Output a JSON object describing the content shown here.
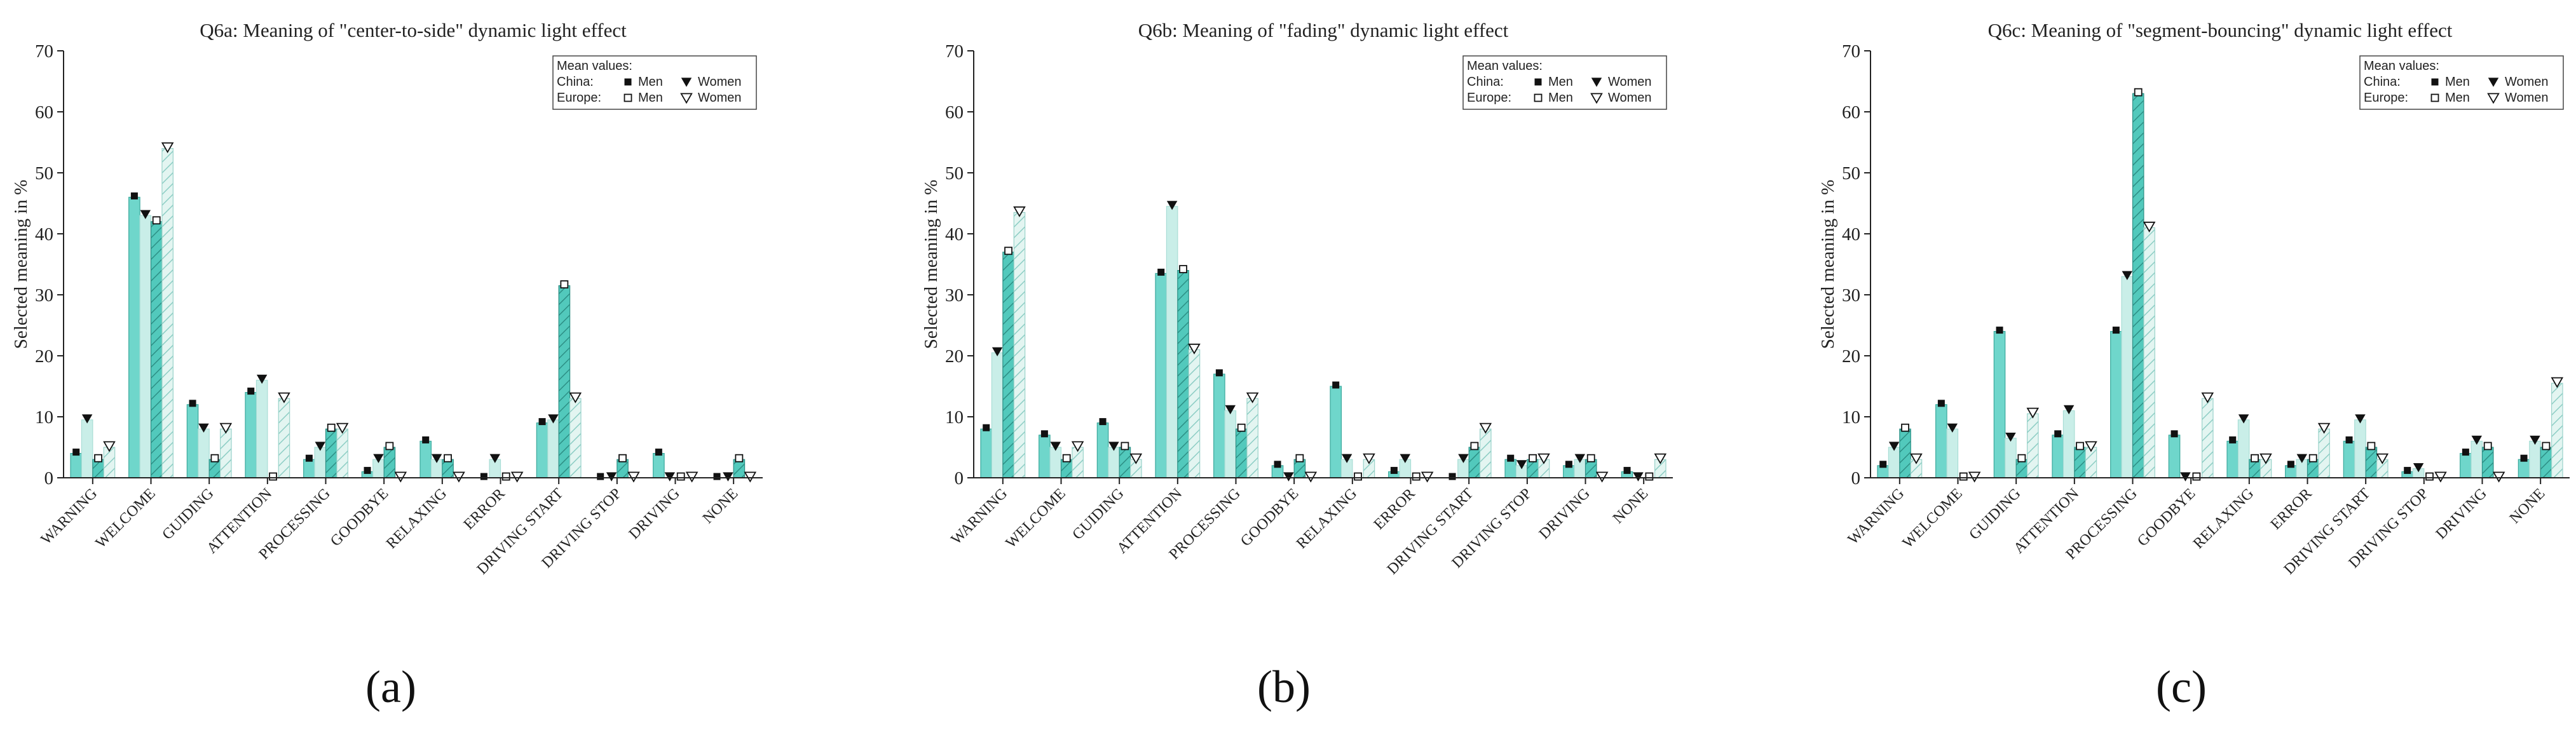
{
  "colors": {
    "china_men": "#6fd6cb",
    "china_women": "#c9eee8",
    "europe_men": "#52c9bc",
    "europe_women": "#d8f1ec",
    "axis": "#222222",
    "marker": "#111111"
  },
  "legend": {
    "title": "Mean values:",
    "row1_label": "China:",
    "row2_label": "Europe:",
    "men": "Men",
    "women": "Women"
  },
  "chart_data": [
    {
      "type": "bar",
      "panel": "(a)",
      "title": "Q6a: Meaning of \"center-to-side\" dynamic light effect",
      "ylabel": "Selected meaning in %",
      "xlabel": "",
      "ylim": [
        0,
        70
      ],
      "yticks": [
        0,
        10,
        20,
        30,
        40,
        50,
        60,
        70
      ],
      "categories": [
        "WARNING",
        "WELCOME",
        "GUIDING",
        "ATTENTION",
        "PROCESSING",
        "GOODBYE",
        "RELAXING",
        "ERROR",
        "DRIVING START",
        "DRIVING STOP",
        "DRIVING",
        "NONE"
      ],
      "series": [
        {
          "name": "China Men",
          "values": [
            4,
            46,
            12,
            14,
            3,
            1,
            6,
            0,
            9,
            0,
            4,
            0
          ]
        },
        {
          "name": "China Women",
          "values": [
            9.5,
            43,
            8,
            16,
            5,
            3,
            3,
            3,
            9.5,
            0,
            0,
            0
          ]
        },
        {
          "name": "Europe Men",
          "values": [
            3,
            42,
            3,
            0,
            8,
            5,
            3,
            0,
            31.5,
            3,
            0,
            3
          ]
        },
        {
          "name": "Europe Women",
          "values": [
            5,
            54,
            8,
            13,
            8,
            0,
            0,
            0,
            13,
            0,
            0,
            0
          ]
        }
      ]
    },
    {
      "type": "bar",
      "panel": "(b)",
      "title": "Q6b: Meaning of \"fading\" dynamic light effect",
      "ylabel": "Selected meaning in %",
      "xlabel": "",
      "ylim": [
        0,
        70
      ],
      "yticks": [
        0,
        10,
        20,
        30,
        40,
        50,
        60,
        70
      ],
      "categories": [
        "WARNING",
        "WELCOME",
        "GUIDING",
        "ATTENTION",
        "PROCESSING",
        "GOODBYE",
        "RELAXING",
        "ERROR",
        "DRIVING START",
        "DRIVING STOP",
        "DRIVING",
        "NONE"
      ],
      "series": [
        {
          "name": "China Men",
          "values": [
            8,
            7,
            9,
            33.5,
            17,
            2,
            15,
            1,
            0,
            3,
            2,
            1
          ]
        },
        {
          "name": "China Women",
          "values": [
            20.5,
            5,
            5,
            44.5,
            11,
            0,
            3,
            3,
            3,
            2,
            3,
            0
          ]
        },
        {
          "name": "Europe Men",
          "values": [
            37,
            3,
            5,
            34,
            8,
            3,
            0,
            0,
            5,
            3,
            3,
            0
          ]
        },
        {
          "name": "Europe Women",
          "values": [
            43.5,
            5,
            3,
            21,
            13,
            0,
            3,
            0,
            8,
            3,
            0,
            3
          ]
        }
      ]
    },
    {
      "type": "bar",
      "panel": "(c)",
      "title": "Q6c: Meaning of \"segment-bouncing\" dynamic light effect",
      "ylabel": "Selected meaning in %",
      "xlabel": "",
      "ylim": [
        0,
        70
      ],
      "yticks": [
        0,
        10,
        20,
        30,
        40,
        50,
        60,
        70
      ],
      "categories": [
        "WARNING",
        "WELCOME",
        "GUIDING",
        "ATTENTION",
        "PROCESSING",
        "GOODBYE",
        "RELAXING",
        "ERROR",
        "DRIVING START",
        "DRIVING STOP",
        "DRIVING",
        "NONE"
      ],
      "series": [
        {
          "name": "China Men",
          "values": [
            2,
            12,
            24,
            7,
            24,
            7,
            6,
            2,
            6,
            1,
            4,
            3
          ]
        },
        {
          "name": "China Women",
          "values": [
            5,
            8,
            6.5,
            11,
            33,
            0,
            9.5,
            3,
            9.5,
            1.5,
            6,
            6
          ]
        },
        {
          "name": "Europe Men",
          "values": [
            8,
            0,
            3,
            5,
            63,
            0,
            3,
            3,
            5,
            0,
            5,
            5
          ]
        },
        {
          "name": "Europe Women",
          "values": [
            3,
            0,
            10.5,
            5,
            41,
            13,
            3,
            8,
            3,
            0,
            0,
            15.5
          ]
        }
      ]
    }
  ]
}
